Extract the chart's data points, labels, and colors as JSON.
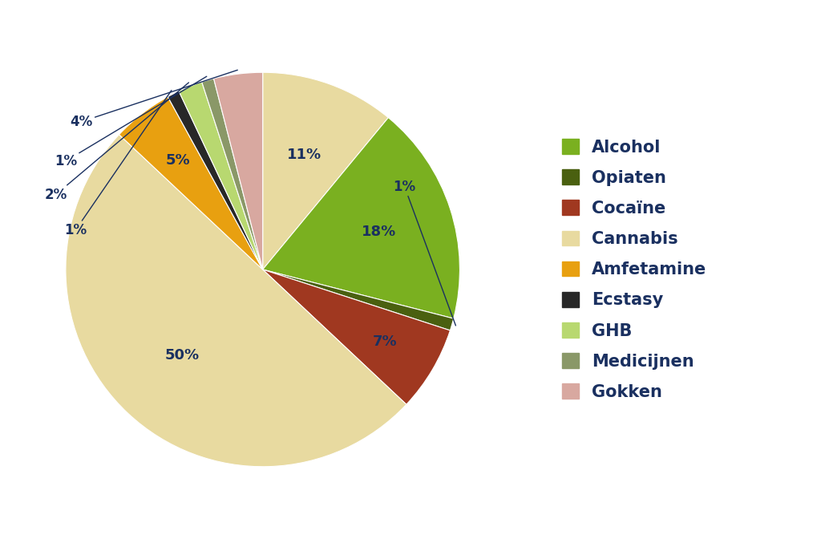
{
  "values_plot": [
    11,
    18,
    1,
    7,
    50,
    5,
    1,
    2,
    1,
    4
  ],
  "colors_plot": [
    "#e8daa0",
    "#7ab020",
    "#4a6010",
    "#a03820",
    "#e8daa0",
    "#e8a010",
    "#282828",
    "#b8d870",
    "#8a9868",
    "#d8a8a0"
  ],
  "pct_display": [
    "11%",
    "18%",
    "1%",
    "7%",
    "50%",
    "5%",
    "1%",
    "2%",
    "1%",
    "4%"
  ],
  "legend_labels": [
    "Alcohol",
    "Opiaten",
    "Cocaïne",
    "Cannabis",
    "Amfetamine",
    "Ecstasy",
    "GHB",
    "Medicijnen",
    "Gokken"
  ],
  "legend_colors": [
    "#7ab020",
    "#4a6010",
    "#a03820",
    "#e8daa0",
    "#e8a010",
    "#282828",
    "#b8d870",
    "#8a9868",
    "#d8a8a0"
  ],
  "text_color": "#1a3060",
  "background_color": "#ffffff",
  "figsize": [
    10.24,
    6.72
  ],
  "dpi": 100
}
